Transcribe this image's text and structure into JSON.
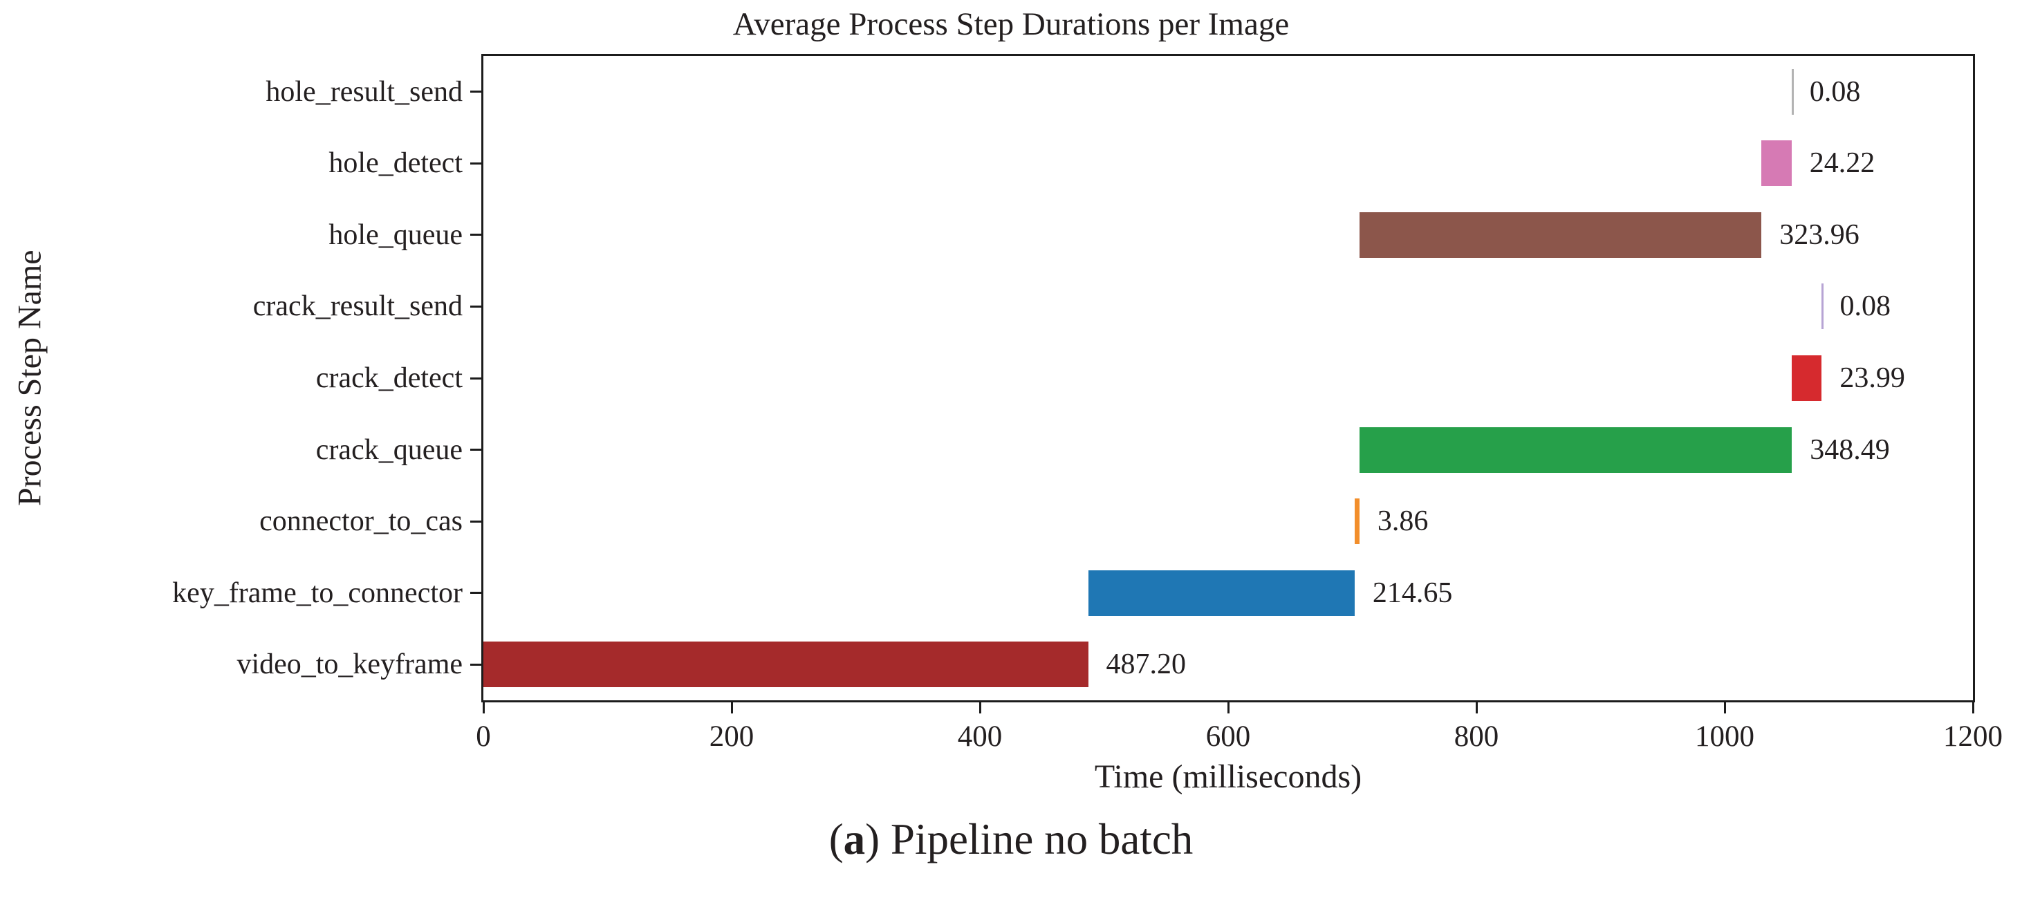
{
  "figure": {
    "caption": {
      "open_paren": "(",
      "index_letter": "a",
      "close_paren": ") ",
      "text": "Pipeline no batch"
    }
  },
  "chart_data": {
    "type": "bar",
    "orientation": "horizontal",
    "gantt_style": true,
    "title": "Average Process Step Durations per Image",
    "xlabel": "Time (milliseconds)",
    "ylabel": "Process Step Name",
    "xlim": [
      0,
      1200
    ],
    "xticks": [
      0,
      200,
      400,
      600,
      800,
      1000,
      1200
    ],
    "grid": false,
    "legend": false,
    "axis_color": "#1c1c1c",
    "text_color": "#231f20",
    "bars_top_to_bottom": [
      {
        "label": "hole_result_send",
        "start": 1053.9,
        "duration": 0.08,
        "value_label": "0.08",
        "color": "#b3b3b3",
        "thin": true
      },
      {
        "label": "hole_detect",
        "start": 1029.7,
        "duration": 24.22,
        "value_label": "24.22",
        "color": "#d67ab4",
        "thin": false
      },
      {
        "label": "hole_queue",
        "start": 705.7,
        "duration": 323.96,
        "value_label": "323.96",
        "color": "#8c564b",
        "thin": false
      },
      {
        "label": "crack_result_send",
        "start": 1078.2,
        "duration": 0.08,
        "value_label": "0.08",
        "color": "#b7a4d4",
        "thin": true
      },
      {
        "label": "crack_detect",
        "start": 1054.2,
        "duration": 23.99,
        "value_label": "23.99",
        "color": "#d62a2e",
        "thin": false
      },
      {
        "label": "crack_queue",
        "start": 705.7,
        "duration": 348.49,
        "value_label": "348.49",
        "color": "#26a04a",
        "thin": false
      },
      {
        "label": "connector_to_cas",
        "start": 701.9,
        "duration": 3.86,
        "value_label": "3.86",
        "color": "#f28e2b",
        "thin": false
      },
      {
        "label": "key_frame_to_connector",
        "start": 487.2,
        "duration": 214.65,
        "value_label": "214.65",
        "color": "#1f77b4",
        "thin": false
      },
      {
        "label": "video_to_keyframe",
        "start": 0,
        "duration": 487.2,
        "value_label": "487.20",
        "color": "#a52a2b",
        "thin": false
      }
    ]
  }
}
